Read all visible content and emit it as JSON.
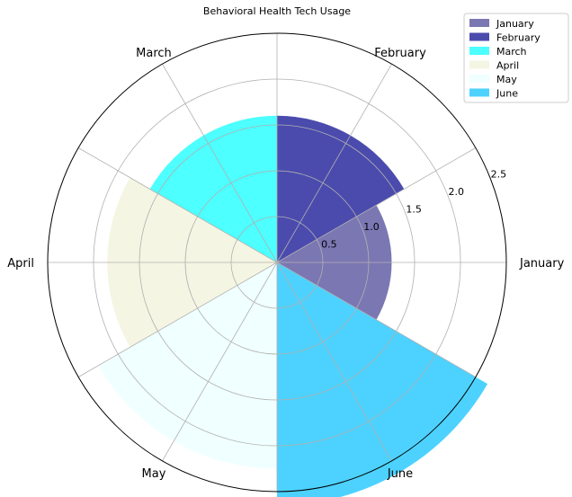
{
  "chart_data": {
    "type": "polar-bar",
    "title": "Behavioral Health Tech Usage",
    "categories": [
      "January",
      "February",
      "March",
      "April",
      "May",
      "June"
    ],
    "values": [
      1.25,
      1.6,
      1.6,
      1.85,
      2.25,
      2.65
    ],
    "colors": [
      "#7B77B3",
      "#4B4BAE",
      "#4DFFFF",
      "#F5F5E3",
      "#F0FFFF",
      "#4DD2FF"
    ],
    "radial_ticks": [
      0.5,
      1.0,
      1.5,
      2.0,
      2.5
    ],
    "rlim": [
      0,
      2.5
    ],
    "grid": true,
    "legend": {
      "placement": "top-right",
      "entries": [
        "January",
        "February",
        "March",
        "April",
        "May",
        "June"
      ]
    }
  }
}
